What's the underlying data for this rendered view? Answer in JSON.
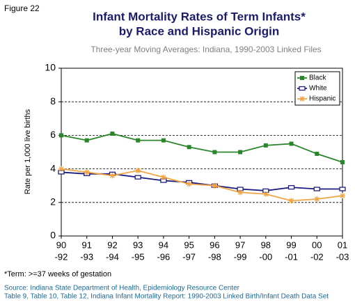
{
  "chart_data": {
    "type": "line",
    "figure_label": "Figure 22",
    "title": [
      "Infant Mortality Rates of Term Infants*",
      "by Race and Hispanic Origin"
    ],
    "subtitle": "Three-year Moving Averages: Indiana, 1990-2003 Linked Files",
    "y_label": "Rate per 1,000 live births",
    "categories": [
      [
        "90",
        "-92"
      ],
      [
        "91",
        "-93"
      ],
      [
        "92",
        "-94"
      ],
      [
        "93",
        "-95"
      ],
      [
        "94",
        "-96"
      ],
      [
        "95",
        "-97"
      ],
      [
        "96",
        "-98"
      ],
      [
        "97",
        "-99"
      ],
      [
        "98",
        "-00"
      ],
      [
        "99",
        "-01"
      ],
      [
        "00",
        "-02"
      ],
      [
        "01",
        "-03"
      ]
    ],
    "series": [
      {
        "name": "Black",
        "color": "#2b862b",
        "marker": "square",
        "values": [
          6.0,
          5.7,
          6.1,
          5.7,
          5.7,
          5.3,
          5.0,
          5.0,
          5.4,
          5.5,
          4.9,
          4.4
        ]
      },
      {
        "name": "White",
        "color": "#1c1c7e",
        "marker": "circle",
        "values": [
          3.8,
          3.7,
          3.7,
          3.5,
          3.3,
          3.2,
          3.0,
          2.8,
          2.7,
          2.9,
          2.8,
          2.8
        ]
      },
      {
        "name": "Hispanic",
        "color": "#f2a445",
        "marker": "star",
        "values": [
          4.0,
          3.8,
          3.6,
          3.9,
          3.5,
          3.1,
          3.0,
          2.6,
          2.5,
          2.1,
          2.2,
          2.4
        ]
      }
    ],
    "ylim": [
      0,
      10
    ],
    "yticks": [
      0,
      2,
      4,
      6,
      8,
      10
    ],
    "grid": true,
    "legend": "upper-right",
    "footnote": "*Term: >=37 weeks of gestation",
    "source": [
      "Source: Indiana State Department of Health, Epidemiology Resource Center",
      "Table 9, Table 10, Table 12, Indiana Infant Mortality Report: 1990-2003 Linked Birth/Infant Death Data Set"
    ]
  }
}
